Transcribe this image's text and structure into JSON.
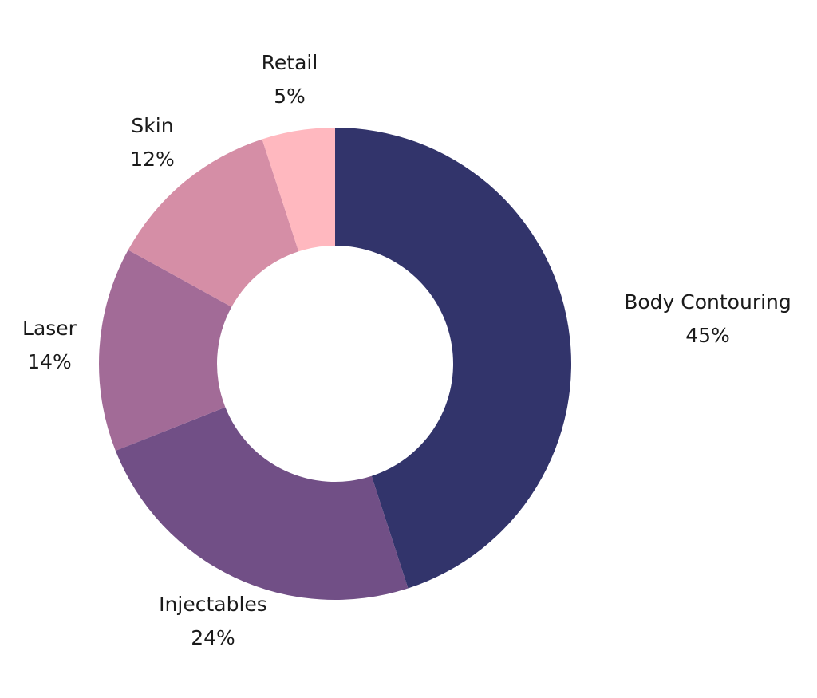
{
  "chart_data": {
    "type": "pie",
    "style": "donut",
    "slices": [
      {
        "label": "Body Contouring",
        "value_label": "45%",
        "value": 45,
        "color": "#32346b"
      },
      {
        "label": "Injectables",
        "value_label": "24%",
        "value": 24,
        "color": "#714f86"
      },
      {
        "label": "Laser",
        "value_label": "14%",
        "value": 14,
        "color": "#a26b97"
      },
      {
        "label": "Skin",
        "value_label": "12%",
        "value": 12,
        "color": "#d58ea6"
      },
      {
        "label": "Retail",
        "value_label": "5%",
        "value": 5,
        "color": "#ffb8bf"
      }
    ],
    "legend": "none"
  }
}
